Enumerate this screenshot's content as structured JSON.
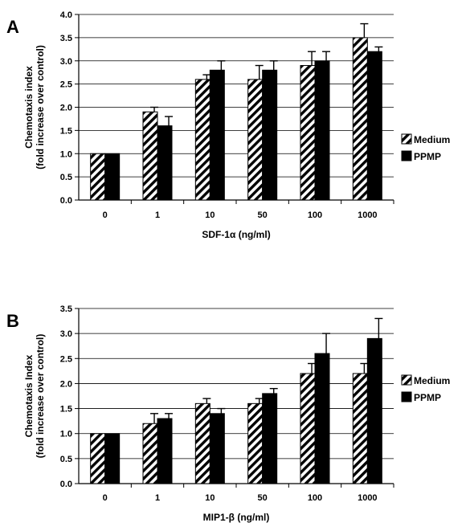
{
  "colors": {
    "bar_pattern": "#000000",
    "bar_solid": "#000000",
    "background": "#ffffff",
    "grid": "#000000"
  },
  "chart_data": [
    {
      "type": "bar",
      "panel_label": "A",
      "categories": [
        "0",
        "1",
        "10",
        "50",
        "100",
        "1000"
      ],
      "series": [
        {
          "name": "Medium",
          "pattern": "diagonal-hatch",
          "values": [
            1.0,
            1.9,
            2.6,
            2.6,
            2.9,
            3.5
          ],
          "errors": [
            0,
            0.1,
            0.1,
            0.3,
            0.3,
            0.3
          ]
        },
        {
          "name": "PPMP",
          "pattern": "solid",
          "values": [
            1.0,
            1.6,
            2.8,
            2.8,
            3.0,
            3.2
          ],
          "errors": [
            0,
            0.2,
            0.2,
            0.2,
            0.2,
            0.1
          ]
        }
      ],
      "ylim": [
        0,
        4.0
      ],
      "yticks": [
        "0.0",
        "0.5",
        "1.0",
        "1.5",
        "2.0",
        "2.5",
        "3.0",
        "3.5",
        "4.0"
      ],
      "xlabel": "SDF-1α (ng/ml)",
      "ylabel_lines": [
        "Chemotaxis index",
        "(fold increase over control)"
      ],
      "grid": true,
      "legend": "right"
    },
    {
      "type": "bar",
      "panel_label": "B",
      "categories": [
        "0",
        "1",
        "10",
        "50",
        "100",
        "1000"
      ],
      "series": [
        {
          "name": "Medium",
          "pattern": "diagonal-hatch",
          "values": [
            1.0,
            1.2,
            1.6,
            1.6,
            2.2,
            2.2
          ],
          "errors": [
            0,
            0.2,
            0.1,
            0.1,
            0.2,
            0.2
          ]
        },
        {
          "name": "PPMP",
          "pattern": "solid",
          "values": [
            1.0,
            1.3,
            1.4,
            1.8,
            2.6,
            2.9
          ],
          "errors": [
            0,
            0.1,
            0.1,
            0.1,
            0.4,
            0.4
          ]
        }
      ],
      "ylim": [
        0,
        3.5
      ],
      "yticks": [
        "0.0",
        "0.5",
        "1.0",
        "1.5",
        "2.0",
        "2.5",
        "3.0",
        "3.5"
      ],
      "xlabel": "MIP1-β (ng/ml)",
      "ylabel_lines": [
        "Chemotaxis Index",
        "(fold increase over control)"
      ],
      "grid": true,
      "legend": "right"
    }
  ]
}
